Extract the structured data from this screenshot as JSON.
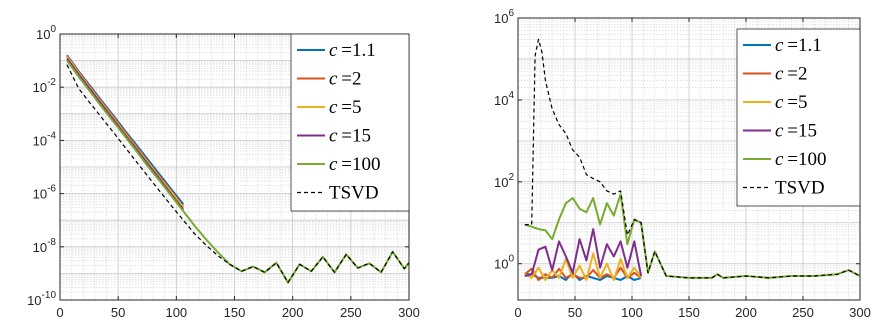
{
  "chart_data": [
    {
      "type": "line",
      "yscale": "log",
      "xlim": [
        0,
        300
      ],
      "ylim": [
        1e-10,
        1
      ],
      "grid": true,
      "legend_position": "top-right",
      "x_ticks": [
        "0",
        "50",
        "100",
        "150",
        "200",
        "250",
        "300"
      ],
      "y_ticks": [
        {
          "base": "10",
          "exp": "0"
        },
        {
          "base": "10",
          "exp": "-2"
        },
        {
          "base": "10",
          "exp": "-4"
        },
        {
          "base": "10",
          "exp": "-6"
        },
        {
          "base": "10",
          "exp": "-8"
        },
        {
          "base": "10",
          "exp": "-10"
        }
      ],
      "series": [
        {
          "name": "c =1.1",
          "color": "#0072BD",
          "dashed": false,
          "x": [
            6,
            16,
            26,
            36,
            46,
            56,
            66,
            76,
            86,
            96,
            106
          ],
          "y": [
            0.16,
            0.04,
            0.011,
            0.003,
            0.00085,
            0.00023,
            6.5e-05,
            1.8e-05,
            5e-06,
            1.4e-06,
            4e-07
          ]
        },
        {
          "name": "c =2",
          "color": "#D95319",
          "dashed": false,
          "x": [
            6,
            16,
            26,
            36,
            46,
            56,
            66,
            76,
            86,
            96,
            106
          ],
          "y": [
            0.15,
            0.037,
            0.0098,
            0.0027,
            0.00075,
            0.0002,
            5.6e-05,
            1.5e-05,
            4.2e-06,
            1.2e-06,
            3.2e-07
          ]
        },
        {
          "name": "c =5",
          "color": "#EDB120",
          "dashed": false,
          "x": [
            6,
            16,
            26,
            36,
            46,
            56,
            66,
            76,
            86,
            96,
            106
          ],
          "y": [
            0.14,
            0.034,
            0.009,
            0.0025,
            0.00068,
            0.00018,
            5e-05,
            1.4e-05,
            3.8e-06,
            1.1e-06,
            3e-07
          ]
        },
        {
          "name": "c =15",
          "color": "#7E2F8E",
          "dashed": false,
          "x": [
            6,
            16,
            26,
            36,
            46,
            56,
            66,
            76,
            86,
            96,
            106
          ],
          "y": [
            0.12,
            0.03,
            0.0082,
            0.0022,
            0.0006,
            0.00016,
            4.5e-05,
            1.2e-05,
            3.4e-06,
            9e-07,
            2.5e-07
          ]
        },
        {
          "name": "c =100",
          "color": "#77AC30",
          "dashed": false,
          "x": [
            6,
            16,
            26,
            36,
            46,
            56,
            66,
            76,
            86,
            96,
            106,
            116,
            126,
            136,
            146,
            156,
            166,
            176,
            186,
            196,
            206,
            216,
            226,
            236,
            246,
            256,
            266,
            276,
            286,
            296,
            300
          ],
          "y": [
            0.1,
            0.025,
            0.0068,
            0.0018,
            0.0005,
            0.00014,
            3.8e-05,
            1e-05,
            2.9e-06,
            8e-07,
            2.2e-07,
            6e-08,
            1.8e-08,
            6e-09,
            2.2e-09,
            1.2e-09,
            1.8e-09,
            1.1e-09,
            2.5e-09,
            4.5e-10,
            2.2e-09,
            1.2e-09,
            4.2e-09,
            1.1e-09,
            5.2e-09,
            1.6e-09,
            2.4e-09,
            1.1e-09,
            6.5e-09,
            1.5e-09,
            2.5e-09
          ]
        },
        {
          "name": "TSVD",
          "color": "#000000",
          "dashed": true,
          "x": [
            6,
            16,
            26,
            36,
            46,
            56,
            66,
            76,
            86,
            96,
            106,
            116,
            126,
            136,
            146,
            156,
            166,
            176,
            186,
            196,
            206,
            216,
            226,
            236,
            246,
            256,
            266,
            276,
            286,
            296,
            300
          ],
          "y": [
            0.07,
            0.009,
            0.0025,
            0.0007,
            0.0002,
            5.5e-05,
            1.5e-05,
            4.2e-06,
            1.2e-06,
            3.4e-07,
            1e-07,
            3e-08,
            1.1e-08,
            4.5e-09,
            2.2e-09,
            1.2e-09,
            1.8e-09,
            1.1e-09,
            2.5e-09,
            4.5e-10,
            2.2e-09,
            1.2e-09,
            4.2e-09,
            1.1e-09,
            5.2e-09,
            1.6e-09,
            2.4e-09,
            1.1e-09,
            6.5e-09,
            1.5e-09,
            2.5e-09
          ]
        }
      ]
    },
    {
      "type": "line",
      "yscale": "log",
      "xlim": [
        0,
        300
      ],
      "ylim": [
        0.13,
        1000000
      ],
      "grid": true,
      "legend_position": "top-right",
      "x_ticks": [
        "0",
        "50",
        "100",
        "150",
        "200",
        "250",
        "300"
      ],
      "y_ticks": [
        {
          "base": "10",
          "exp": "6"
        },
        {
          "base": "10",
          "exp": "4"
        },
        {
          "base": "10",
          "exp": "2"
        },
        {
          "base": "10",
          "exp": "0"
        }
      ],
      "series": [
        {
          "name": "c =1.1",
          "color": "#0072BD",
          "dashed": false,
          "x": [
            6,
            12,
            18,
            24,
            30,
            36,
            42,
            48,
            54,
            60,
            66,
            72,
            78,
            84,
            90,
            96,
            102,
            108
          ],
          "y": [
            0.55,
            0.55,
            0.45,
            0.45,
            0.45,
            0.5,
            0.4,
            0.6,
            0.4,
            0.5,
            0.45,
            0.4,
            0.5,
            0.45,
            0.4,
            0.5,
            0.4,
            0.45
          ]
        },
        {
          "name": "c =2",
          "color": "#D95319",
          "dashed": false,
          "x": [
            6,
            12,
            18,
            24,
            30,
            36,
            42,
            48,
            54,
            60,
            66,
            72,
            78,
            84,
            90,
            96,
            102,
            108
          ],
          "y": [
            0.55,
            0.75,
            0.4,
            0.55,
            0.45,
            0.75,
            0.45,
            0.55,
            0.45,
            0.45,
            0.7,
            0.45,
            0.55,
            0.45,
            0.8,
            0.45,
            0.6,
            0.45
          ]
        },
        {
          "name": "c =5",
          "color": "#EDB120",
          "dashed": false,
          "x": [
            6,
            12,
            18,
            24,
            30,
            36,
            42,
            48,
            54,
            60,
            66,
            72,
            78,
            84,
            90,
            96,
            102,
            108
          ],
          "y": [
            0.55,
            0.45,
            0.8,
            0.4,
            0.7,
            0.45,
            1.3,
            0.45,
            0.9,
            0.4,
            1.8,
            0.45,
            1.0,
            0.4,
            1.3,
            0.45,
            0.8,
            0.45
          ]
        },
        {
          "name": "c =15",
          "color": "#7E2F8E",
          "dashed": false,
          "x": [
            6,
            12,
            18,
            24,
            30,
            36,
            42,
            48,
            54,
            60,
            66,
            72,
            78,
            84,
            90,
            96,
            102,
            108
          ],
          "y": [
            0.5,
            0.55,
            2.2,
            2.6,
            0.7,
            3.5,
            1.5,
            0.6,
            4.0,
            1.2,
            7.0,
            0.8,
            3.0,
            1.5,
            3.5,
            0.8,
            3.5,
            0.5
          ]
        },
        {
          "name": "c =100",
          "color": "#77AC30",
          "dashed": false,
          "x": [
            6,
            12,
            18,
            24,
            30,
            36,
            42,
            48,
            54,
            60,
            66,
            72,
            78,
            84,
            90,
            96,
            102,
            108,
            114,
            120,
            130,
            150,
            170,
            175,
            180,
            200,
            220,
            240,
            260,
            280,
            290,
            300
          ],
          "y": [
            9,
            8,
            7,
            6.5,
            4,
            12,
            30,
            40,
            22,
            18,
            40,
            9,
            30,
            15,
            50,
            3,
            12,
            10,
            0.6,
            2,
            0.5,
            0.45,
            0.45,
            0.55,
            0.45,
            0.5,
            0.45,
            0.5,
            0.5,
            0.55,
            0.7,
            0.5
          ]
        },
        {
          "name": "TSVD",
          "color": "#000000",
          "dashed": true,
          "x": [
            6,
            12,
            15,
            18,
            21,
            24,
            30,
            36,
            42,
            48,
            54,
            60,
            66,
            72,
            78,
            84,
            90,
            96,
            102,
            108,
            114,
            120,
            130,
            150,
            170,
            175,
            180,
            200,
            220,
            240,
            260,
            280,
            290,
            300
          ],
          "y": [
            9,
            9,
            120000,
            300000,
            150000,
            30000,
            6000,
            2500,
            1500,
            600,
            400,
            150,
            120,
            100,
            60,
            50,
            60,
            5,
            12,
            10,
            0.6,
            2,
            0.5,
            0.45,
            0.45,
            0.55,
            0.45,
            0.5,
            0.45,
            0.5,
            0.5,
            0.55,
            0.7,
            0.5
          ]
        }
      ]
    }
  ]
}
